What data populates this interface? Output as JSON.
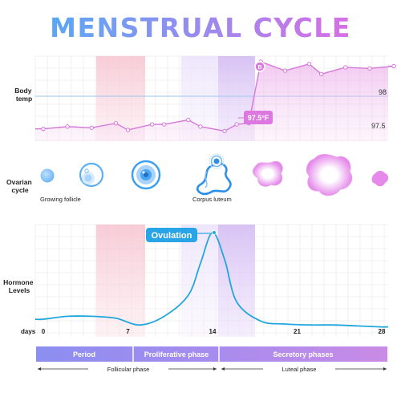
{
  "title": "MENSTRUAL CYCLE",
  "colors": {
    "title_start": "#59a8f5",
    "title_end": "#d96ee6",
    "period_band": "#f7c7d2",
    "ovulation_band": "#d9c3f3",
    "temp_line": "#d678d9",
    "hormone_line": "#23a6dd",
    "accent_blue": "#2b9cf0",
    "accent_pink": "#dc78e0"
  },
  "row_labels": {
    "body_temp": [
      "Body",
      "temp"
    ],
    "ovarian": [
      "Ovarian",
      "cycle"
    ],
    "hormone": [
      "Hormone",
      "Levels"
    ]
  },
  "temp_chart": {
    "y_ticks": [
      "98",
      "97.5"
    ],
    "callout_low": "97.5°F",
    "callout_high": "B"
  },
  "ovarian_labels": {
    "growing_follicle": "Growing follicle",
    "corpus_luteum": "Corpus luteum"
  },
  "ovulation_label": "Ovulation",
  "x_axis": {
    "label": "days",
    "ticks": [
      "0",
      "7",
      "14",
      "21",
      "28"
    ]
  },
  "phases": {
    "period": "Period",
    "proliferative": "Proliferative phase",
    "secretory": "Secretory phases"
  },
  "subphases": {
    "follicular": "Follicular phase",
    "luteal": "Luteal phase"
  },
  "chart_data": [
    {
      "type": "line",
      "name": "Body temp",
      "x": [
        0,
        2,
        4,
        6,
        7,
        9,
        10,
        12,
        13,
        15,
        16,
        17,
        18,
        20,
        22,
        23,
        25,
        27,
        29
      ],
      "values": [
        97.53,
        97.55,
        97.54,
        97.58,
        97.52,
        97.57,
        97.57,
        97.61,
        97.55,
        97.51,
        97.57,
        97.58,
        98.13,
        98.05,
        98.11,
        98.02,
        98.08,
        98.07,
        98.09
      ],
      "ylim": [
        97.42,
        98.18
      ]
    },
    {
      "type": "line",
      "name": "Hormone Levels",
      "x": [
        0,
        2,
        4,
        6,
        8,
        10,
        12,
        13,
        14,
        15,
        16,
        18,
        20,
        22,
        24,
        26,
        28
      ],
      "values": [
        0.1,
        0.13,
        0.13,
        0.11,
        0.04,
        0.13,
        0.35,
        0.68,
        1.0,
        0.72,
        0.28,
        0.08,
        0.05,
        0.04,
        0.04,
        0.03,
        0.02
      ],
      "ylim": [
        0,
        1
      ]
    }
  ]
}
